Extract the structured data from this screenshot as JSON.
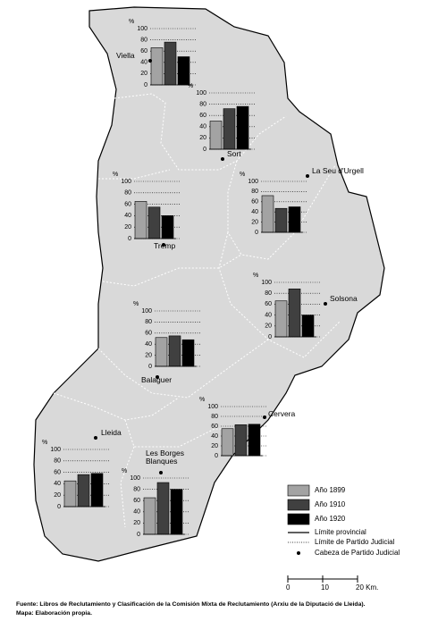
{
  "y_unit": "%",
  "ylim": [
    0,
    100
  ],
  "yticks": [
    0,
    20,
    40,
    60,
    80,
    100
  ],
  "series": [
    {
      "name": "Año 1899",
      "color": "#a3a3a3"
    },
    {
      "name": "Año 1910",
      "color": "#404040"
    },
    {
      "name": "Año 1920",
      "color": "#000000"
    }
  ],
  "legend_lines": [
    "Límite provincial",
    "Límite de Partido Judicial",
    "Cabeza de Partido Judicial"
  ],
  "districts": [
    {
      "name": "Viella",
      "values": [
        66,
        76,
        50
      ]
    },
    {
      "name": "Sort",
      "values": [
        50,
        72,
        76
      ]
    },
    {
      "name": "La Seu d'Urgell",
      "values": [
        72,
        47,
        50
      ]
    },
    {
      "name": "Tremp",
      "values": [
        65,
        55,
        40
      ]
    },
    {
      "name": "Solsona",
      "values": [
        66,
        88,
        40
      ]
    },
    {
      "name": "Balaguer",
      "values": [
        52,
        55,
        48
      ]
    },
    {
      "name": "Cervera",
      "values": [
        55,
        63,
        64
      ]
    },
    {
      "name": "Lleida",
      "values": [
        45,
        56,
        58
      ]
    },
    {
      "name": "Les Borges Blanques",
      "values": [
        65,
        92,
        80
      ]
    }
  ],
  "scale": {
    "lim": [
      0,
      20
    ],
    "ticks": [
      0,
      10,
      {
        "value": 20,
        "label": "20 Km."
      }
    ]
  },
  "source": "Fuente: Libros de Reclutamiento y Clasificación de la Comisión Mixta de Reclutamiento (Arxiu de la Diputació de Lleida).",
  "note": "Mapa: Elaboración propia."
}
